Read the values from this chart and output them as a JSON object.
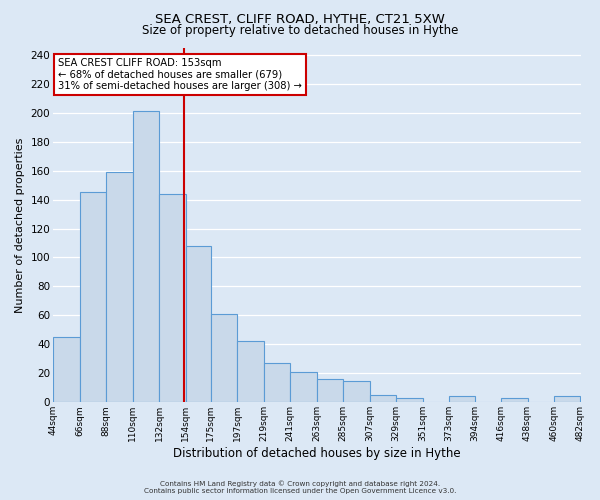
{
  "title1": "SEA CREST, CLIFF ROAD, HYTHE, CT21 5XW",
  "title2": "Size of property relative to detached houses in Hythe",
  "xlabel": "Distribution of detached houses by size in Hythe",
  "ylabel": "Number of detached properties",
  "bar_edges": [
    44,
    66,
    88,
    110,
    132,
    154,
    175,
    197,
    219,
    241,
    263,
    285,
    307,
    329,
    351,
    373,
    394,
    416,
    438,
    460,
    482
  ],
  "bar_heights": [
    45,
    145,
    159,
    201,
    144,
    108,
    61,
    42,
    27,
    21,
    16,
    15,
    5,
    3,
    0,
    4,
    0,
    3,
    0,
    4
  ],
  "bar_color": "#c9d9ea",
  "bar_edge_color": "#5b9bd5",
  "property_line_x": 153,
  "annotation_title": "SEA CREST CLIFF ROAD: 153sqm",
  "annotation_line1": "← 68% of detached houses are smaller (679)",
  "annotation_line2": "31% of semi-detached houses are larger (308) →",
  "annotation_box_color": "#ffffff",
  "annotation_box_edge_color": "#cc0000",
  "vline_color": "#cc0000",
  "ylim": [
    0,
    245
  ],
  "yticks": [
    0,
    20,
    40,
    60,
    80,
    100,
    120,
    140,
    160,
    180,
    200,
    220,
    240
  ],
  "tick_labels": [
    "44sqm",
    "66sqm",
    "88sqm",
    "110sqm",
    "132sqm",
    "154sqm",
    "175sqm",
    "197sqm",
    "219sqm",
    "241sqm",
    "263sqm",
    "285sqm",
    "307sqm",
    "329sqm",
    "351sqm",
    "373sqm",
    "394sqm",
    "416sqm",
    "438sqm",
    "460sqm",
    "482sqm"
  ],
  "footer_line1": "Contains HM Land Registry data © Crown copyright and database right 2024.",
  "footer_line2": "Contains public sector information licensed under the Open Government Licence v3.0.",
  "bg_color": "#dce8f5",
  "plot_bg_color": "#dce8f5",
  "grid_color": "#ffffff"
}
